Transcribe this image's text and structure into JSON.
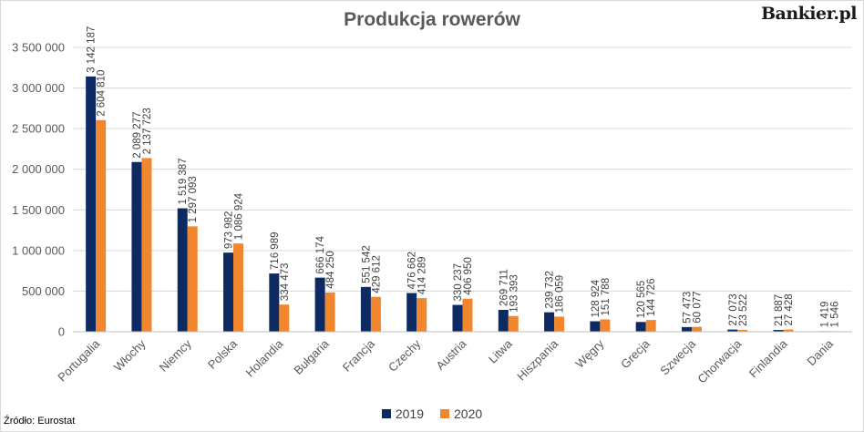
{
  "header": {
    "title": "Produkcja rowerów",
    "brand": "Bankier.pl"
  },
  "footer": {
    "source": "Źródło: Eurostat"
  },
  "colors": {
    "series_2019": "#0e2a63",
    "series_2020": "#f0872f",
    "grid": "#d9d9d9",
    "text": "#595959"
  },
  "chart_data": {
    "type": "bar",
    "title": "Produkcja rowerów",
    "xlabel": "",
    "ylabel": "",
    "ylim": [
      0,
      3500000
    ],
    "yticks": [
      0,
      500000,
      1000000,
      1500000,
      2000000,
      2500000,
      3000000,
      3500000
    ],
    "ytick_labels": [
      "0",
      "500 000",
      "1 000 000",
      "1 500 000",
      "2 000 000",
      "2 500 000",
      "3 000 000",
      "3 500 000"
    ],
    "grid": true,
    "legend_position": "bottom",
    "categories": [
      "Portugalia",
      "Włochy",
      "Niemcy",
      "Polska",
      "Holandia",
      "Bułgaria",
      "Francja",
      "Czechy",
      "Austria",
      "Litwa",
      "Hiszpania",
      "Węgry",
      "Grecja",
      "Szwecja",
      "Chorwacja",
      "Finlandia",
      "Dania"
    ],
    "series": [
      {
        "name": "2019",
        "values": [
          3142187,
          2089277,
          1519387,
          973982,
          716989,
          666174,
          551542,
          476662,
          330237,
          269711,
          239732,
          128924,
          120565,
          57473,
          27073,
          21887,
          1419
        ],
        "labels": [
          "3 142 187",
          "2 089 277",
          "1 519 387",
          "973 982",
          "716 989",
          "666 174",
          "551 542",
          "476 662",
          "330 237",
          "269 711",
          "239 732",
          "128 924",
          "120 565",
          "57 473",
          "27 073",
          "21 887",
          "1 419"
        ]
      },
      {
        "name": "2020",
        "values": [
          2604810,
          2137723,
          1297093,
          1086924,
          334473,
          484250,
          429612,
          414289,
          406950,
          193393,
          186059,
          151788,
          144726,
          60077,
          23522,
          27428,
          1546
        ],
        "labels": [
          "2 604 810",
          "2 137 723",
          "1 297 093",
          "1 086 924",
          "334 473",
          "484 250",
          "429 612",
          "414 289",
          "406 950",
          "193 393",
          "186 059",
          "151 788",
          "144 726",
          "60 077",
          "23 522",
          "27 428",
          "1 546"
        ]
      }
    ]
  }
}
